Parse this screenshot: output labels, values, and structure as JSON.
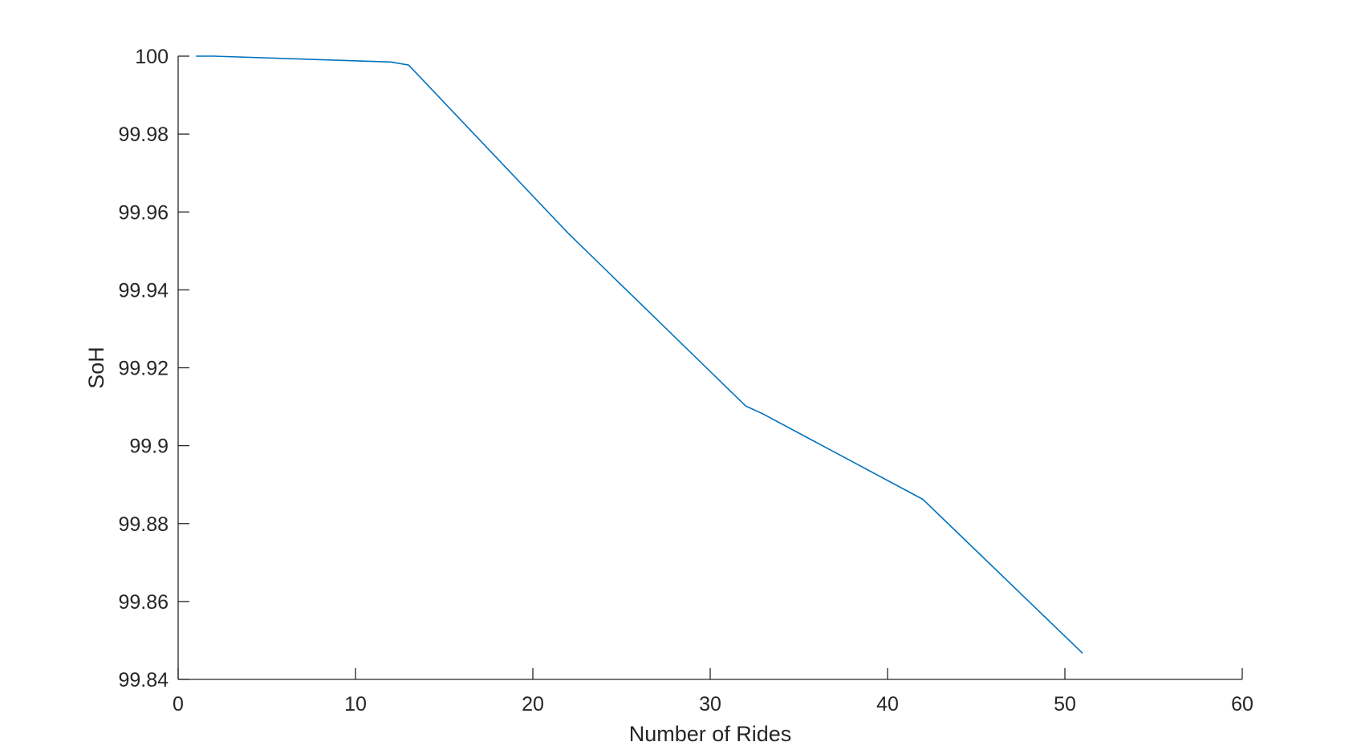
{
  "chart_data": {
    "type": "line",
    "title": "",
    "xlabel": "Number of Rides",
    "ylabel": "SoH",
    "xlim": [
      0,
      60
    ],
    "ylim": [
      99.84,
      100
    ],
    "xticks": [
      0,
      10,
      20,
      30,
      40,
      50,
      60
    ],
    "yticks": [
      99.84,
      99.86,
      99.88,
      99.9,
      99.92,
      99.94,
      99.96,
      99.98,
      100
    ],
    "xtick_labels": [
      "0",
      "10",
      "20",
      "30",
      "40",
      "50",
      "60"
    ],
    "ytick_labels": [
      "99.84",
      "99.86",
      "99.88",
      "99.9",
      "99.92",
      "99.94",
      "99.96",
      "99.98",
      "100"
    ],
    "grid": false,
    "series": [
      {
        "color": "#0072BD",
        "x": [
          1,
          2,
          12,
          13,
          22,
          32,
          33,
          42,
          43,
          51
        ],
        "y": [
          100,
          100,
          99.9985,
          99.9977,
          99.9545,
          99.9102,
          99.9081,
          99.8862,
          99.8818,
          99.8467
        ]
      }
    ]
  }
}
